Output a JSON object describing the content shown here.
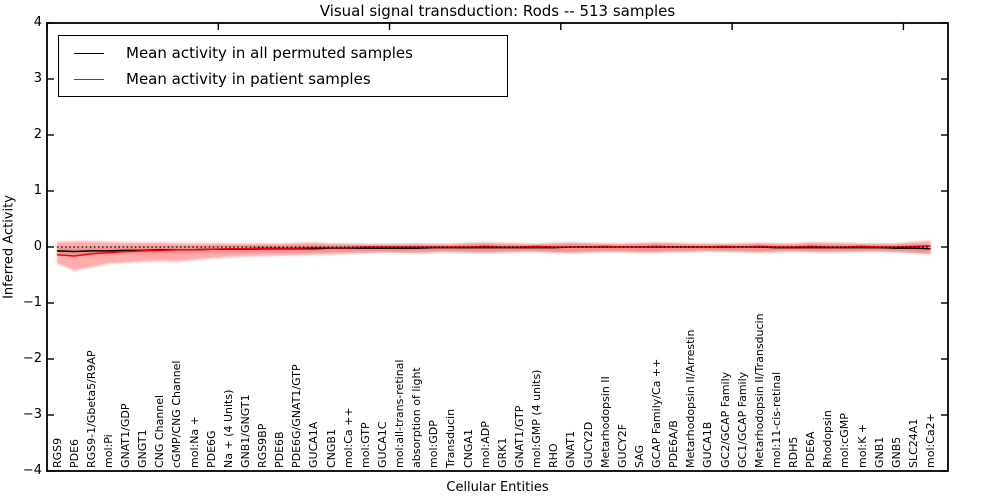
{
  "figure": {
    "title": "Visual signal transduction: Rods -- 513 samples",
    "xlabel": "Cellular Entities",
    "ylabel": "Inferred Activity"
  },
  "legend": {
    "items": [
      {
        "label": "Mean activity in all permuted samples",
        "color": "#000000"
      },
      {
        "label": "Mean activity in patient samples",
        "color": "#ff0000"
      }
    ]
  },
  "axes": {
    "y_ticks": [
      4,
      3,
      2,
      1,
      0,
      -1,
      -2,
      -3,
      -4
    ],
    "y_tick_labels": [
      "4",
      "3",
      "2",
      "1",
      "0",
      "−1",
      "−2",
      "−3",
      "−4"
    ],
    "x_tick_positions": [
      0,
      10,
      20,
      30,
      40,
      50
    ]
  },
  "chart_data": {
    "type": "line",
    "title": "Visual signal transduction: Rods -- 513 samples",
    "xlabel": "Cellular Entities",
    "ylabel": "Inferred Activity",
    "ylim": [
      -4,
      4
    ],
    "grid": false,
    "legend_position": "upper left",
    "categories": [
      "RGS9",
      "PDE6",
      "RGS9-1/Gbeta5/R9AP",
      "mol:Pi",
      "GNAT1/GDP",
      "GNGT1",
      "CNG Channel",
      "cGMP/CNG Channel",
      "mol:Na +",
      "PDE6G",
      "Na + (4 Units)",
      "GNB1/GNGT1",
      "RGS9BP",
      "PDE6B",
      "PDE6G/GNAT1/GTP",
      "GUCA1A",
      "CNGB1",
      "mol:Ca ++",
      "mol:GTP",
      "GUCA1C",
      "mol:all-trans-retinal",
      "absorption of light",
      "mol:GDP",
      "Transducin",
      "CNGA1",
      "mol:ADP",
      "GRK1",
      "GNAT1/GTP",
      "mol:GMP (4 units)",
      "RHO",
      "GNAT1",
      "GUCY2D",
      "Metarhodopsin II",
      "GUCY2F",
      "SAG",
      "GCAP Family/Ca ++",
      "PDE6A/B",
      "Metarhodopsin II/Arrestin",
      "GUCA1B",
      "GC2/GCAP Family",
      "GC1/GCAP Family",
      "Metarhodopsin II/Transducin",
      "mol:11-cis-retinal",
      "RDH5",
      "PDE6A",
      "Rhodopsin",
      "mol:cGMP",
      "mol:K +",
      "GNB1",
      "GNB5",
      "SLC24A1",
      "mol:Ca2+"
    ],
    "series": [
      {
        "name": "Mean activity in all permuted samples",
        "color": "#000000",
        "band_color": "rgba(90,90,90,0.22)",
        "values": [
          -0.07,
          -0.08,
          -0.07,
          -0.07,
          -0.06,
          -0.06,
          -0.05,
          -0.05,
          -0.05,
          -0.04,
          -0.04,
          -0.04,
          -0.03,
          -0.03,
          -0.03,
          -0.03,
          -0.02,
          -0.02,
          -0.02,
          -0.02,
          -0.02,
          -0.02,
          -0.01,
          -0.01,
          -0.01,
          -0.01,
          -0.01,
          -0.01,
          -0.01,
          -0.01,
          0,
          0,
          0,
          0,
          0,
          0,
          0,
          0,
          0,
          0,
          0,
          0,
          -0.01,
          -0.01,
          -0.01,
          -0.01,
          -0.01,
          -0.01,
          -0.01,
          -0.02,
          -0.02,
          -0.03
        ],
        "band_upper": [
          -0.01,
          -0.02,
          -0.01,
          0,
          0,
          0.01,
          0.01,
          0.02,
          0.02,
          0.02,
          0.03,
          0.03,
          0.03,
          0.03,
          0.04,
          0.04,
          0.04,
          0.04,
          0.04,
          0.05,
          0.05,
          0.05,
          0.05,
          0.05,
          0.06,
          0.06,
          0.05,
          0.05,
          0.05,
          0.06,
          0.06,
          0.06,
          0.05,
          0.05,
          0.06,
          0.06,
          0.06,
          0.05,
          0.05,
          0.05,
          0.06,
          0.06,
          0.05,
          0.05,
          0.06,
          0.05,
          0.05,
          0.05,
          0.05,
          0.05,
          0.05,
          0.04
        ],
        "band_lower": [
          -0.13,
          -0.15,
          -0.14,
          -0.14,
          -0.13,
          -0.13,
          -0.12,
          -0.12,
          -0.12,
          -0.11,
          -0.11,
          -0.11,
          -0.1,
          -0.1,
          -0.1,
          -0.1,
          -0.09,
          -0.09,
          -0.09,
          -0.09,
          -0.1,
          -0.09,
          -0.08,
          -0.08,
          -0.09,
          -0.09,
          -0.08,
          -0.08,
          -0.08,
          -0.09,
          -0.09,
          -0.08,
          -0.08,
          -0.08,
          -0.09,
          -0.09,
          -0.08,
          -0.08,
          -0.07,
          -0.08,
          -0.08,
          -0.09,
          -0.08,
          -0.08,
          -0.09,
          -0.08,
          -0.08,
          -0.08,
          -0.08,
          -0.09,
          -0.1,
          -0.11
        ]
      },
      {
        "name": "Mean activity in patient samples",
        "color": "#ff0000",
        "band_color": "rgba(255,0,0,0.33)",
        "values": [
          -0.14,
          -0.16,
          -0.12,
          -0.1,
          -0.08,
          -0.07,
          -0.06,
          -0.05,
          -0.05,
          -0.04,
          -0.03,
          -0.03,
          -0.02,
          -0.02,
          -0.02,
          -0.01,
          -0.01,
          -0.01,
          0,
          0,
          0,
          0,
          0,
          0,
          0,
          0.01,
          0,
          0,
          0.01,
          0,
          0,
          0,
          0.01,
          0,
          0,
          0.01,
          0,
          0,
          0,
          0.01,
          0,
          0.01,
          0,
          0,
          0.01,
          0,
          0,
          0.01,
          0,
          0,
          0.01,
          0.02
        ],
        "band_upper": [
          0.09,
          0.1,
          0.1,
          0.09,
          0.08,
          0.08,
          0.08,
          0.07,
          0.07,
          0.07,
          0.06,
          0.06,
          0.06,
          0.06,
          0.07,
          0.08,
          0.06,
          0.06,
          0.05,
          0.05,
          0.05,
          0.06,
          0.05,
          0.05,
          0.07,
          0.08,
          0.07,
          0.06,
          0.05,
          0.07,
          0.08,
          0.07,
          0.06,
          0.06,
          0.07,
          0.08,
          0.07,
          0.06,
          0.06,
          0.05,
          0.06,
          0.07,
          0.06,
          0.06,
          0.08,
          0.08,
          0.07,
          0.06,
          0.06,
          0.06,
          0.09,
          0.11
        ],
        "band_lower": [
          -0.3,
          -0.42,
          -0.36,
          -0.3,
          -0.28,
          -0.26,
          -0.25,
          -0.26,
          -0.23,
          -0.2,
          -0.18,
          -0.17,
          -0.16,
          -0.15,
          -0.15,
          -0.14,
          -0.13,
          -0.12,
          -0.11,
          -0.1,
          -0.1,
          -0.11,
          -0.1,
          -0.09,
          -0.1,
          -0.11,
          -0.1,
          -0.09,
          -0.09,
          -0.1,
          -0.11,
          -0.1,
          -0.09,
          -0.09,
          -0.1,
          -0.1,
          -0.09,
          -0.09,
          -0.08,
          -0.08,
          -0.09,
          -0.1,
          -0.09,
          -0.08,
          -0.09,
          -0.1,
          -0.09,
          -0.08,
          -0.08,
          -0.09,
          -0.11,
          -0.13
        ]
      }
    ],
    "reference_line": {
      "y": 0,
      "style": "dotted",
      "color": "#000000"
    }
  }
}
